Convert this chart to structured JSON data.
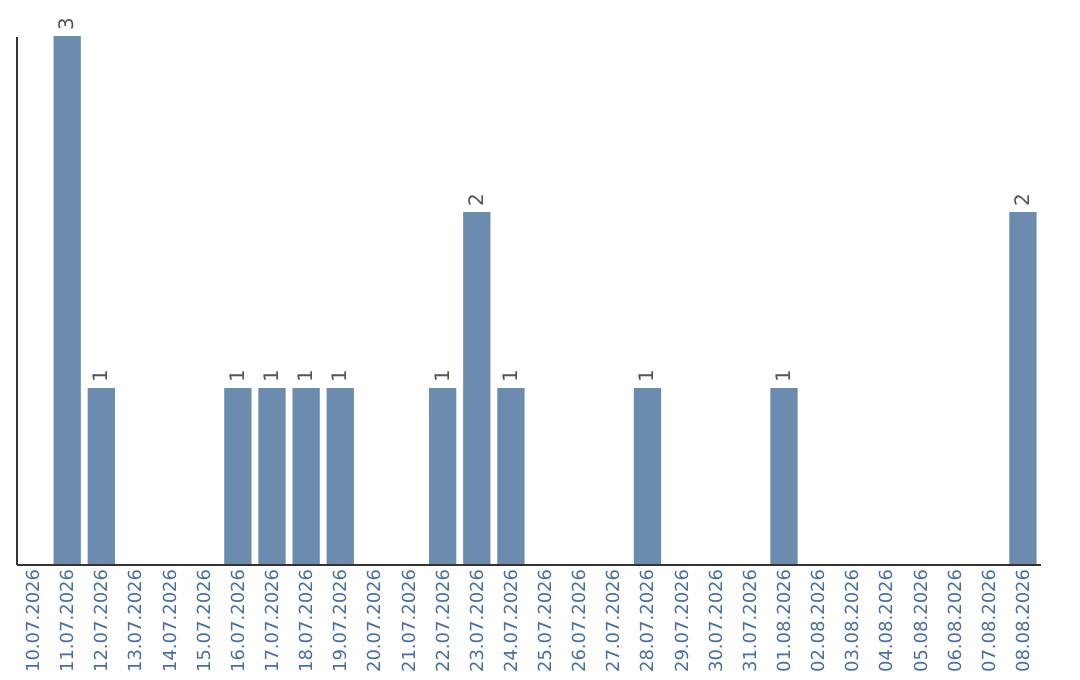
{
  "chart_data": {
    "type": "bar",
    "categories": [
      "10.07.2026",
      "11.07.2026",
      "12.07.2026",
      "13.07.2026",
      "14.07.2026",
      "15.07.2026",
      "16.07.2026",
      "17.07.2026",
      "18.07.2026",
      "19.07.2026",
      "20.07.2026",
      "21.07.2026",
      "22.07.2026",
      "23.07.2026",
      "24.07.2026",
      "25.07.2026",
      "26.07.2026",
      "27.07.2026",
      "28.07.2026",
      "29.07.2026",
      "30.07.2026",
      "31.07.2026",
      "01.08.2026",
      "02.08.2026",
      "03.08.2026",
      "04.08.2026",
      "05.08.2026",
      "06.08.2026",
      "07.08.2026",
      "08.08.2026"
    ],
    "values": [
      0,
      3,
      1,
      0,
      0,
      0,
      1,
      1,
      1,
      1,
      0,
      0,
      1,
      2,
      1,
      0,
      0,
      0,
      1,
      0,
      0,
      0,
      1,
      0,
      0,
      0,
      0,
      0,
      0,
      2
    ],
    "value_labels": [
      null,
      "3",
      "1",
      null,
      null,
      null,
      "1",
      "1",
      "1",
      "1",
      null,
      null,
      "1",
      "2",
      "1",
      null,
      null,
      null,
      "1",
      null,
      null,
      null,
      "1",
      null,
      null,
      null,
      null,
      null,
      null,
      "2"
    ],
    "color": "#6b8cae",
    "tick_labels": "x",
    "grid": false
  }
}
